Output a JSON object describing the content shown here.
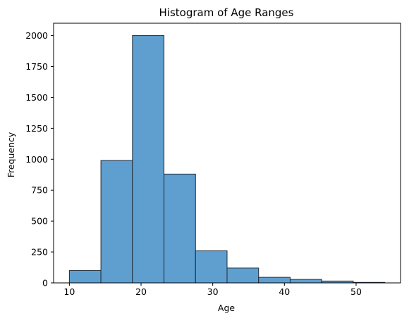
{
  "chart_data": {
    "type": "bar",
    "title": "Histogram of Age Ranges",
    "xlabel": "Age",
    "ylabel": "Frequency",
    "bin_edges": [
      10.0,
      14.4,
      18.8,
      23.2,
      27.6,
      32.0,
      36.4,
      40.8,
      45.2,
      49.6,
      54.0
    ],
    "values": [
      100,
      990,
      2000,
      880,
      260,
      120,
      45,
      28,
      15,
      4
    ],
    "xlim": [
      7.8,
      56.2
    ],
    "ylim": [
      0,
      2100
    ],
    "xticks": [
      10,
      20,
      30,
      40,
      50
    ],
    "yticks": [
      0,
      250,
      500,
      750,
      1000,
      1250,
      1500,
      1750,
      2000
    ],
    "xtick_labels": [
      "10",
      "20",
      "30",
      "40",
      "50"
    ],
    "ytick_labels": [
      "0",
      "250",
      "500",
      "750",
      "1000",
      "1250",
      "1500",
      "1750",
      "2000"
    ],
    "grid": false,
    "legend": null,
    "colors": {
      "bar_fill": "#5f9fcf",
      "bar_edge": "#1f2a36",
      "axis": "#000000"
    }
  }
}
